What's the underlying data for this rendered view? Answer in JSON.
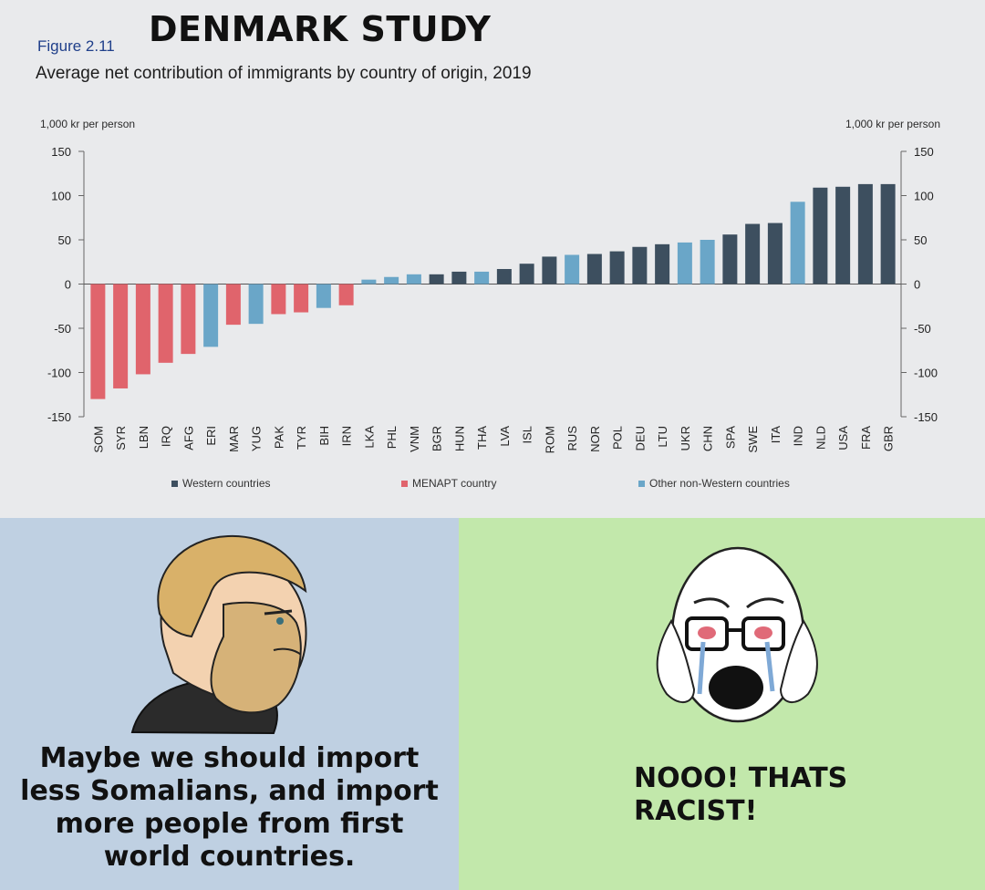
{
  "meme_title": "DENMARK STUDY",
  "figure_label": "Figure 2.11",
  "figure_title": "Average net contribution of immigrants by country of origin, 2019",
  "unit_left": "1,000 kr per person",
  "unit_right": "1,000 kr per person",
  "colors": {
    "western": "#3d4f5f",
    "menapt": "#e0646c",
    "other": "#6aa6c8"
  },
  "chart_data": {
    "type": "bar",
    "ylim": [
      -150,
      150
    ],
    "yticks": [
      150,
      100,
      50,
      0,
      -50,
      -100,
      -150
    ],
    "grid": false,
    "legend_position": "bottom",
    "legend": [
      {
        "key": "western",
        "label": "Western countries"
      },
      {
        "key": "menapt",
        "label": "MENAPT country"
      },
      {
        "key": "other",
        "label": "Other non-Western countries"
      }
    ],
    "categories": [
      "SOM",
      "SYR",
      "LBN",
      "IRQ",
      "AFG",
      "ERI",
      "MAR",
      "YUG",
      "PAK",
      "TYR",
      "BIH",
      "IRN",
      "LKA",
      "PHL",
      "VNM",
      "BGR",
      "HUN",
      "THA",
      "LVA",
      "ISL",
      "ROM",
      "RUS",
      "NOR",
      "POL",
      "DEU",
      "LTU",
      "UKR",
      "CHN",
      "SPA",
      "SWE",
      "ITA",
      "IND",
      "NLD",
      "USA",
      "FRA",
      "GBR"
    ],
    "values": [
      -130,
      -118,
      -102,
      -89,
      -79,
      -71,
      -46,
      -45,
      -34,
      -32,
      -27,
      -24,
      5,
      8,
      11,
      11,
      14,
      14,
      17,
      23,
      31,
      33,
      34,
      37,
      42,
      45,
      47,
      50,
      56,
      68,
      69,
      93,
      109,
      110,
      113,
      113
    ],
    "groups": [
      "menapt",
      "menapt",
      "menapt",
      "menapt",
      "menapt",
      "other",
      "menapt",
      "other",
      "menapt",
      "menapt",
      "other",
      "menapt",
      "other",
      "other",
      "other",
      "western",
      "western",
      "other",
      "western",
      "western",
      "western",
      "other",
      "western",
      "western",
      "western",
      "western",
      "other",
      "other",
      "western",
      "western",
      "western",
      "other",
      "western",
      "western",
      "western",
      "western"
    ]
  },
  "left_caption": [
    "Maybe we should import",
    "less Somalians, and import",
    "more people from first",
    "world countries."
  ],
  "right_caption": [
    "NOOO! THATS",
    "RACIST!"
  ]
}
